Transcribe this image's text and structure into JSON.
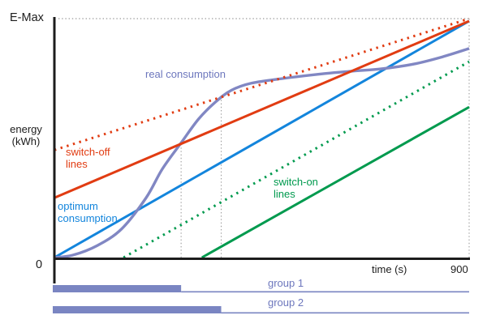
{
  "chart_data": {
    "type": "line",
    "title": "",
    "xlabel": "time (s)",
    "ylabel": "energy\n(kWh)",
    "x_range": [
      0,
      900
    ],
    "y_range": [
      0,
      1
    ],
    "y_max_label": "E-Max",
    "y_min_label": "0",
    "x_end_label": "900",
    "grid": false,
    "legend_position": "inline-annotations",
    "series": [
      {
        "name": "switch-off-line-dotted",
        "label": "switch-off lines",
        "color": "#e13c12",
        "style": "dotted",
        "points": [
          [
            0,
            0.45
          ],
          [
            900,
            1.0
          ]
        ]
      },
      {
        "name": "switch-off-line-solid",
        "label": "switch-off lines",
        "color": "#e13c12",
        "style": "solid",
        "points": [
          [
            0,
            0.25
          ],
          [
            900,
            0.99
          ]
        ]
      },
      {
        "name": "optimum-consumption",
        "label": "optimum consumption",
        "color": "#1385dc",
        "style": "solid",
        "points": [
          [
            0,
            0.0
          ],
          [
            900,
            0.99
          ]
        ]
      },
      {
        "name": "switch-on-line-dotted",
        "label": "switch-on lines",
        "color": "#009a4e",
        "style": "dotted",
        "points": [
          [
            150,
            0.0
          ],
          [
            900,
            0.82
          ]
        ]
      },
      {
        "name": "switch-on-line-solid",
        "label": "switch-on lines",
        "color": "#009a4e",
        "style": "solid",
        "points": [
          [
            320,
            0.0
          ],
          [
            900,
            0.63
          ]
        ]
      },
      {
        "name": "real-consumption",
        "label": "real consumption",
        "color": "#8187c3",
        "style": "smooth",
        "points": [
          [
            0,
            0
          ],
          [
            40,
            0.01
          ],
          [
            93,
            0.05
          ],
          [
            146,
            0.12
          ],
          [
            199,
            0.25
          ],
          [
            234,
            0.37
          ],
          [
            275,
            0.48
          ],
          [
            313,
            0.58
          ],
          [
            349,
            0.65
          ],
          [
            384,
            0.7
          ],
          [
            428,
            0.73
          ],
          [
            498,
            0.75
          ],
          [
            587,
            0.77
          ],
          [
            645,
            0.78
          ],
          [
            710,
            0.79
          ],
          [
            780,
            0.81
          ],
          [
            842,
            0.84
          ],
          [
            900,
            0.875
          ]
        ]
      }
    ],
    "reference_lines": [
      {
        "name": "e-max-level",
        "axis": "y",
        "value": 1.0
      }
    ],
    "event_markers": [
      {
        "name": "group-1-switch-off",
        "x": 275,
        "y_top": 0.48
      },
      {
        "name": "group-2-switch-off",
        "x": 362,
        "y_top": 0.67
      },
      {
        "name": "time-end",
        "x": 900,
        "y_top": 1.0
      }
    ],
    "groups": [
      {
        "label": "group 1",
        "on_from": 0,
        "on_until": 275
      },
      {
        "label": "group 2",
        "on_from": 0,
        "on_until": 362
      }
    ]
  },
  "annotations": {
    "e_max": "E-Max",
    "energy_axis": "energy\n(kWh)",
    "real_consumption": "real consumption",
    "switch_off": "switch-off\nlines",
    "optimum": "optimum\nconsumption",
    "switch_on": "switch-on\nlines",
    "zero": "0",
    "time_axis": "time (s)",
    "time_end": "900",
    "group1": "group 1",
    "group2": "group 2"
  },
  "colors": {
    "switch_off": "#e13c12",
    "optimum": "#1385dc",
    "switch_on": "#009a4e",
    "real_consumption": "#6d77bd",
    "group_bar": "#7a85c2",
    "guide": "#9a9a9a",
    "axis": "#1c1c1c",
    "text": "#1c1c1c"
  }
}
